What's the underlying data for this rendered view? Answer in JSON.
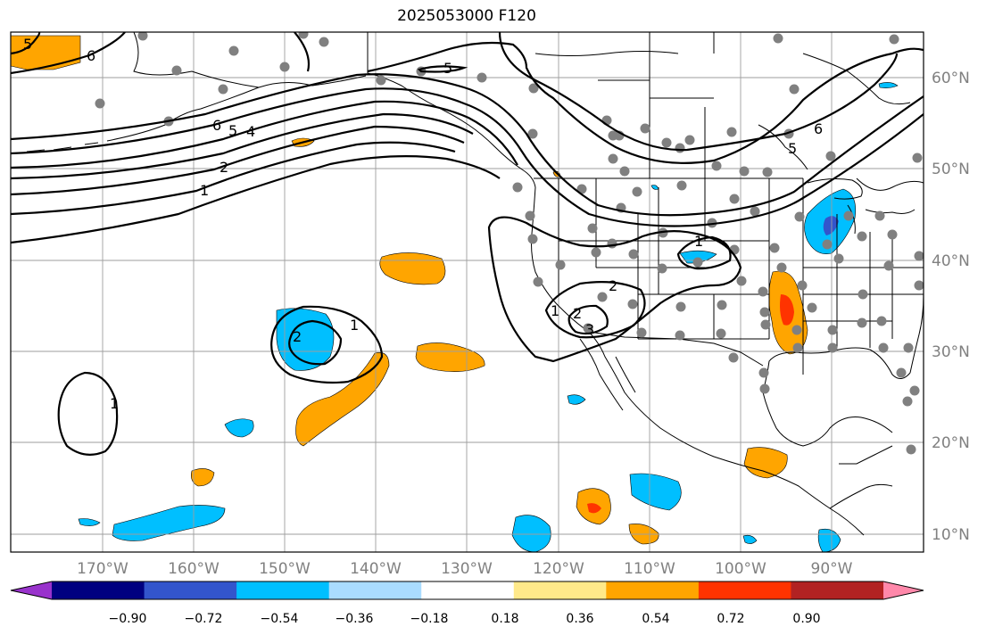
{
  "title": "2025053000 F120",
  "map": {
    "lon_ticks": [
      "170°W",
      "160°W",
      "150°W",
      "140°W",
      "130°W",
      "120°W",
      "110°W",
      "100°W",
      "90°W"
    ],
    "lat_ticks": [
      "60°N",
      "50°N",
      "40°N",
      "30°N",
      "20°N",
      "10°N"
    ],
    "contour_labels": [
      "5",
      "6",
      "6",
      "5",
      "4",
      "2",
      "1",
      "5",
      "2",
      "1",
      "2",
      "1",
      "1",
      "5",
      "6",
      "2",
      "3",
      "1"
    ]
  },
  "colorbar": {
    "ticks": [
      "−0.90",
      "−0.72",
      "−0.54",
      "−0.36",
      "−0.18",
      "0.18",
      "0.36",
      "0.54",
      "0.72",
      "0.90"
    ],
    "colors": [
      "#9933cc",
      "#000080",
      "#3355cc",
      "#00bfff",
      "#aadcff",
      "#ffffff",
      "#ffe98a",
      "#ffa500",
      "#ff3300",
      "#b22222",
      "#ff88aa"
    ]
  },
  "colors": {
    "stations": "#808080",
    "contours": "#000000",
    "grid": "#9e9e9e"
  }
}
